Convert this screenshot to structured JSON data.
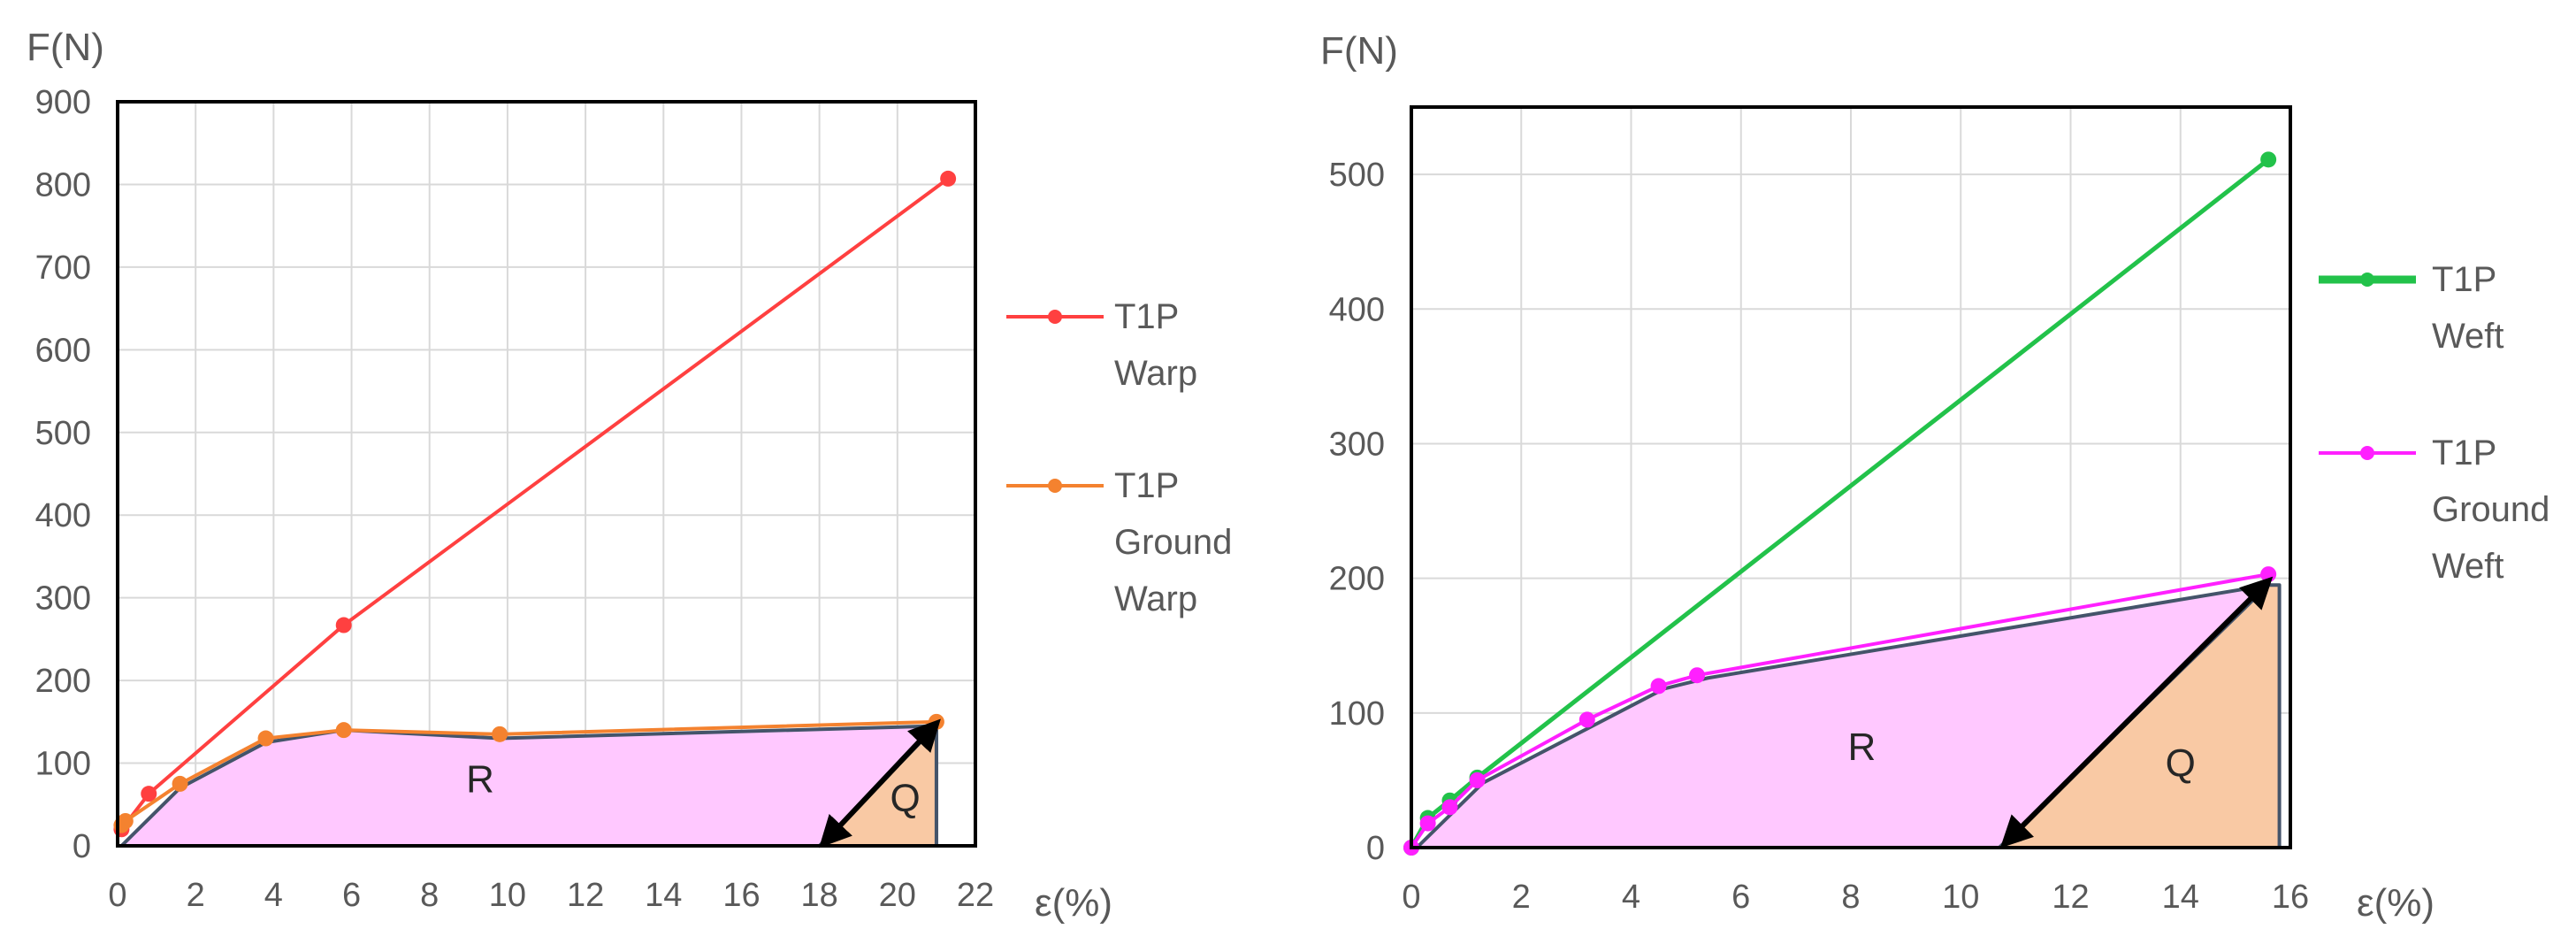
{
  "chart_data": [
    {
      "type": "line",
      "ylabel": "F(N)",
      "xlabel": "ε(%)",
      "xlim": [
        0,
        22
      ],
      "ylim": [
        0,
        900
      ],
      "xticks": [
        "0",
        "2",
        "4",
        "6",
        "8",
        "10",
        "12",
        "14",
        "16",
        "18",
        "20",
        "22"
      ],
      "yticks": [
        "0",
        "100",
        "200",
        "300",
        "400",
        "500",
        "600",
        "700",
        "800",
        "900"
      ],
      "grid": true,
      "legend_position": "right",
      "series": [
        {
          "name_lines": [
            "T1P",
            "Warp"
          ],
          "color": "#ff4040",
          "x": [
            0.1,
            0.8,
            5.8,
            21.3
          ],
          "y": [
            20,
            63,
            267,
            807
          ]
        },
        {
          "name_lines": [
            "T1P",
            "Ground",
            "Warp"
          ],
          "color": "#f4822f",
          "x": [
            0.1,
            0.2,
            1.6,
            3.8,
            5.8,
            9.8,
            21.0
          ],
          "y": [
            25,
            30,
            75,
            130,
            140,
            135,
            150
          ]
        }
      ],
      "regions": [
        {
          "label": "R",
          "label_x": 9.3,
          "label_y": 65,
          "color": "#ffc8ff",
          "x": [
            0.1,
            1.6,
            3.8,
            5.8,
            9.8,
            21.0,
            21.0,
            0.1
          ],
          "y": [
            0,
            70,
            125,
            140,
            130,
            145,
            0,
            0
          ]
        },
        {
          "label": "Q",
          "label_x": 20.2,
          "label_y": 42,
          "color": "#f9c9a4",
          "x": [
            18.0,
            21.0,
            21.0
          ],
          "y": [
            0,
            145,
            0
          ]
        }
      ],
      "arrow": {
        "x1": 18.1,
        "y1": 3,
        "x2": 21.0,
        "y2": 148
      }
    },
    {
      "type": "line",
      "ylabel": "F(N)",
      "xlabel": "ε(%)",
      "xlim": [
        0,
        16
      ],
      "ylim": [
        0,
        550
      ],
      "xticks": [
        "0",
        "2",
        "4",
        "6",
        "8",
        "10",
        "12",
        "14",
        "16"
      ],
      "yticks": [
        "0",
        "100",
        "200",
        "300",
        "400",
        "500"
      ],
      "grid": true,
      "legend_position": "right",
      "series": [
        {
          "name_lines": [
            "T1P",
            "Weft"
          ],
          "color": "#22c24a",
          "x": [
            0.0,
            0.3,
            0.7,
            1.2,
            15.6
          ],
          "y": [
            0,
            22,
            35,
            52,
            511
          ]
        },
        {
          "name_lines": [
            "T1P",
            "Ground",
            "Weft"
          ],
          "color": "#ff20ff",
          "x": [
            0.0,
            0.3,
            0.7,
            1.2,
            3.2,
            4.5,
            5.2,
            15.6
          ],
          "y": [
            0,
            18,
            30,
            50,
            95,
            120,
            128,
            203
          ]
        }
      ],
      "regions": [
        {
          "label": "R",
          "label_x": 8.2,
          "label_y": 65,
          "color": "#ffc8ff",
          "x": [
            0.1,
            1.3,
            4.6,
            5.4,
            15.6,
            15.8,
            0.1
          ],
          "y": [
            0,
            48,
            118,
            126,
            195,
            0,
            0
          ]
        },
        {
          "label": "Q",
          "label_x": 14.0,
          "label_y": 53,
          "color": "#f9c9a4",
          "x": [
            10.7,
            15.6,
            15.8,
            15.8
          ],
          "y": [
            0,
            195,
            195,
            0
          ]
        }
      ],
      "arrow": {
        "x1": 10.8,
        "y1": 3,
        "x2": 15.6,
        "y2": 198
      }
    }
  ]
}
